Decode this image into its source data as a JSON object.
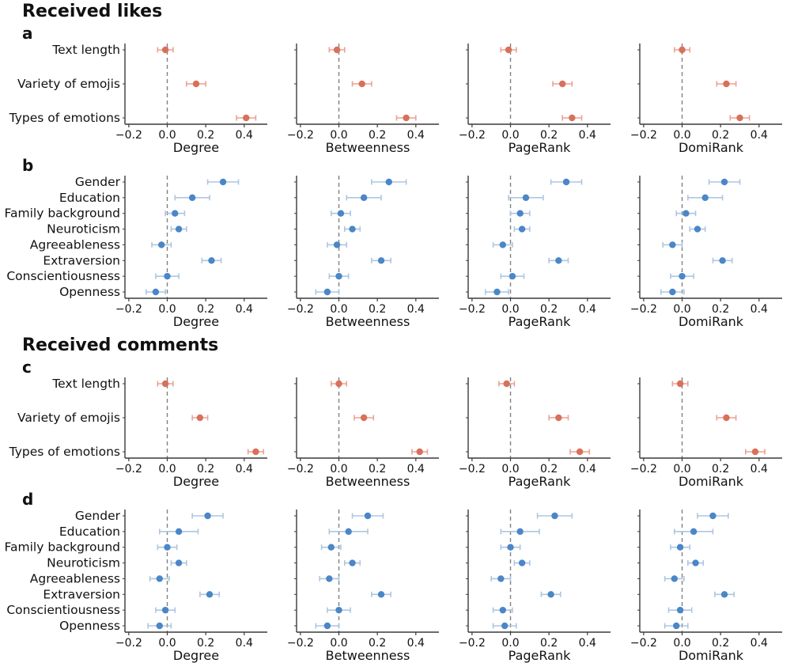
{
  "sections": [
    {
      "title": "Received likes",
      "panel_labels": [
        "a",
        "b"
      ]
    },
    {
      "title": "Received comments",
      "panel_labels": [
        "c",
        "d"
      ]
    }
  ],
  "colors": {
    "content_points": "#d9705a",
    "content_errorbars": "#eba293",
    "traits_points": "#4a86c8",
    "traits_errorbars": "#aec6e0",
    "axis": "#3a3a3a",
    "zero_line": "#808080",
    "text": "#111111"
  },
  "axis": {
    "xlim": [
      -0.22,
      0.52
    ],
    "xticks": [
      -0.2,
      0.0,
      0.2,
      0.4
    ],
    "xtick_labels": [
      "−0.2",
      "0.0",
      "0.2",
      "0.4"
    ],
    "grid": false,
    "zero_line_style": "dashed"
  },
  "chart_data": [
    {
      "type": "scatter",
      "panel": "a",
      "section": "Received likes",
      "xlabel": "Degree",
      "categories": [
        "Text length",
        "Variety of emojis",
        "Types of emotions"
      ],
      "values": [
        -0.01,
        0.15,
        0.41
      ],
      "errors": [
        0.04,
        0.05,
        0.05
      ],
      "color": "#d9705a",
      "error_color": "#eba293",
      "zero_line": true
    },
    {
      "type": "scatter",
      "panel": "a",
      "section": "Received likes",
      "xlabel": "Betweenness",
      "categories": [
        "Text length",
        "Variety of emojis",
        "Types of emotions"
      ],
      "values": [
        -0.01,
        0.12,
        0.35
      ],
      "errors": [
        0.04,
        0.05,
        0.05
      ],
      "color": "#d9705a",
      "error_color": "#eba293",
      "zero_line": true
    },
    {
      "type": "scatter",
      "panel": "a",
      "section": "Received likes",
      "xlabel": "PageRank",
      "categories": [
        "Text length",
        "Variety of emojis",
        "Types of emotions"
      ],
      "values": [
        -0.01,
        0.27,
        0.32
      ],
      "errors": [
        0.04,
        0.05,
        0.05
      ],
      "color": "#d9705a",
      "error_color": "#eba293",
      "zero_line": true
    },
    {
      "type": "scatter",
      "panel": "a",
      "section": "Received likes",
      "xlabel": "DomiRank",
      "categories": [
        "Text length",
        "Variety of emojis",
        "Types of emotions"
      ],
      "values": [
        0.0,
        0.23,
        0.3
      ],
      "errors": [
        0.04,
        0.05,
        0.05
      ],
      "color": "#d9705a",
      "error_color": "#eba293",
      "zero_line": true
    },
    {
      "type": "scatter",
      "panel": "b",
      "section": "Received likes",
      "xlabel": "Degree",
      "categories": [
        "Gender",
        "Education",
        "Family background",
        "Neuroticism",
        "Agreeableness",
        "Extraversion",
        "Conscientiousness",
        "Openness"
      ],
      "values": [
        0.29,
        0.13,
        0.04,
        0.06,
        -0.03,
        0.23,
        0.0,
        -0.06
      ],
      "errors": [
        0.08,
        0.09,
        0.05,
        0.04,
        0.05,
        0.05,
        0.06,
        0.05
      ],
      "color": "#4a86c8",
      "error_color": "#aec6e0",
      "zero_line": true
    },
    {
      "type": "scatter",
      "panel": "b",
      "section": "Received likes",
      "xlabel": "Betweenness",
      "categories": [
        "Gender",
        "Education",
        "Family background",
        "Neuroticism",
        "Agreeableness",
        "Extraversion",
        "Conscientiousness",
        "Openness"
      ],
      "values": [
        0.26,
        0.13,
        0.01,
        0.07,
        -0.01,
        0.22,
        0.0,
        -0.06
      ],
      "errors": [
        0.09,
        0.09,
        0.05,
        0.04,
        0.05,
        0.05,
        0.05,
        0.06
      ],
      "color": "#4a86c8",
      "error_color": "#aec6e0",
      "zero_line": true
    },
    {
      "type": "scatter",
      "panel": "b",
      "section": "Received likes",
      "xlabel": "PageRank",
      "categories": [
        "Gender",
        "Education",
        "Family background",
        "Neuroticism",
        "Agreeableness",
        "Extraversion",
        "Conscientiousness",
        "Openness"
      ],
      "values": [
        0.29,
        0.08,
        0.05,
        0.06,
        -0.04,
        0.25,
        0.01,
        -0.07
      ],
      "errors": [
        0.08,
        0.09,
        0.05,
        0.04,
        0.05,
        0.05,
        0.06,
        0.06
      ],
      "color": "#4a86c8",
      "error_color": "#aec6e0",
      "zero_line": true
    },
    {
      "type": "scatter",
      "panel": "b",
      "section": "Received likes",
      "xlabel": "DomiRank",
      "categories": [
        "Gender",
        "Education",
        "Family background",
        "Neuroticism",
        "Agreeableness",
        "Extraversion",
        "Conscientiousness",
        "Openness"
      ],
      "values": [
        0.22,
        0.12,
        0.02,
        0.08,
        -0.05,
        0.21,
        0.0,
        -0.05
      ],
      "errors": [
        0.08,
        0.09,
        0.05,
        0.04,
        0.05,
        0.05,
        0.06,
        0.06
      ],
      "color": "#4a86c8",
      "error_color": "#aec6e0",
      "zero_line": true
    },
    {
      "type": "scatter",
      "panel": "c",
      "section": "Received comments",
      "xlabel": "Degree",
      "categories": [
        "Text length",
        "Variety of emojis",
        "Types of emotions"
      ],
      "values": [
        -0.01,
        0.17,
        0.46
      ],
      "errors": [
        0.04,
        0.04,
        0.04
      ],
      "color": "#d9705a",
      "error_color": "#eba293",
      "zero_line": true
    },
    {
      "type": "scatter",
      "panel": "c",
      "section": "Received comments",
      "xlabel": "Betweenness",
      "categories": [
        "Text length",
        "Variety of emojis",
        "Types of emotions"
      ],
      "values": [
        0.0,
        0.13,
        0.42
      ],
      "errors": [
        0.04,
        0.05,
        0.04
      ],
      "color": "#d9705a",
      "error_color": "#eba293",
      "zero_line": true
    },
    {
      "type": "scatter",
      "panel": "c",
      "section": "Received comments",
      "xlabel": "PageRank",
      "categories": [
        "Text length",
        "Variety of emojis",
        "Types of emotions"
      ],
      "values": [
        -0.02,
        0.25,
        0.36
      ],
      "errors": [
        0.04,
        0.05,
        0.05
      ],
      "color": "#d9705a",
      "error_color": "#eba293",
      "zero_line": true
    },
    {
      "type": "scatter",
      "panel": "c",
      "section": "Received comments",
      "xlabel": "DomiRank",
      "categories": [
        "Text length",
        "Variety of emojis",
        "Types of emotions"
      ],
      "values": [
        -0.01,
        0.23,
        0.38
      ],
      "errors": [
        0.04,
        0.05,
        0.05
      ],
      "color": "#d9705a",
      "error_color": "#eba293",
      "zero_line": true
    },
    {
      "type": "scatter",
      "panel": "d",
      "section": "Received comments",
      "xlabel": "Degree",
      "categories": [
        "Gender",
        "Education",
        "Family background",
        "Neuroticism",
        "Agreeableness",
        "Extraversion",
        "Conscientiousness",
        "Openness"
      ],
      "values": [
        0.21,
        0.06,
        0.0,
        0.06,
        -0.04,
        0.22,
        -0.01,
        -0.04
      ],
      "errors": [
        0.08,
        0.1,
        0.05,
        0.04,
        0.05,
        0.05,
        0.05,
        0.06
      ],
      "color": "#4a86c8",
      "error_color": "#aec6e0",
      "zero_line": true
    },
    {
      "type": "scatter",
      "panel": "d",
      "section": "Received comments",
      "xlabel": "Betweenness",
      "categories": [
        "Gender",
        "Education",
        "Family background",
        "Neuroticism",
        "Agreeableness",
        "Extraversion",
        "Conscientiousness",
        "Openness"
      ],
      "values": [
        0.15,
        0.05,
        -0.04,
        0.07,
        -0.05,
        0.22,
        0.0,
        -0.06
      ],
      "errors": [
        0.08,
        0.1,
        0.05,
        0.04,
        0.05,
        0.05,
        0.06,
        0.06
      ],
      "color": "#4a86c8",
      "error_color": "#aec6e0",
      "zero_line": true
    },
    {
      "type": "scatter",
      "panel": "d",
      "section": "Received comments",
      "xlabel": "PageRank",
      "categories": [
        "Gender",
        "Education",
        "Family background",
        "Neuroticism",
        "Agreeableness",
        "Extraversion",
        "Conscientiousness",
        "Openness"
      ],
      "values": [
        0.23,
        0.05,
        0.0,
        0.06,
        -0.05,
        0.21,
        -0.04,
        -0.03
      ],
      "errors": [
        0.09,
        0.1,
        0.05,
        0.04,
        0.05,
        0.05,
        0.05,
        0.06
      ],
      "color": "#4a86c8",
      "error_color": "#aec6e0",
      "zero_line": true
    },
    {
      "type": "scatter",
      "panel": "d",
      "section": "Received comments",
      "xlabel": "DomiRank",
      "categories": [
        "Gender",
        "Education",
        "Family background",
        "Neuroticism",
        "Agreeableness",
        "Extraversion",
        "Conscientiousness",
        "Openness"
      ],
      "values": [
        0.16,
        0.06,
        -0.01,
        0.07,
        -0.04,
        0.22,
        -0.01,
        -0.03
      ],
      "errors": [
        0.08,
        0.1,
        0.05,
        0.04,
        0.05,
        0.05,
        0.06,
        0.06
      ],
      "color": "#4a86c8",
      "error_color": "#aec6e0",
      "zero_line": true
    }
  ]
}
